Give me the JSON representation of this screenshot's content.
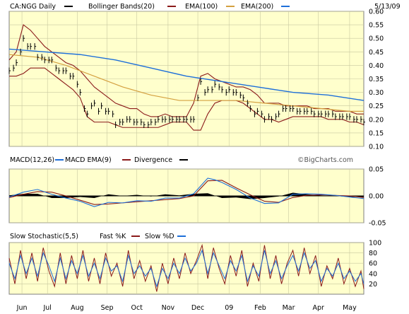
{
  "colors": {
    "page_bg": "#ffffff",
    "panel_bg": "#ffffcc",
    "frame": "#7f7f7f",
    "grid": "#c8c8a0",
    "price": "#000000",
    "bollinger": "#8b1a1a",
    "ema100": "#d4a040",
    "ema200": "#1e6fd9",
    "macd": "#1e6fd9",
    "macd_ema": "#8b1a1a",
    "divergence": "#000000",
    "fast_k": "#8b1a1a",
    "slow_d": "#1e6fd9"
  },
  "chart_data": [
    {
      "type": "line",
      "panel": "price",
      "legend": [
        {
          "label": "CA:NGG Daily",
          "color": "#000000"
        },
        {
          "label": "Bollinger Bands(20)",
          "color": "#8b1a1a"
        },
        {
          "label": "EMA(100)",
          "color": "#d4a040"
        },
        {
          "label": "EMA(200)",
          "color": "#1e6fd9"
        }
      ],
      "date_label": "5/13/09",
      "ylim": [
        0.1,
        0.6
      ],
      "y_ticks": [
        "0.60",
        "0.55",
        "0.50",
        "0.45",
        "0.40",
        "0.35",
        "0.30",
        "0.25",
        "0.20",
        "0.15",
        "0.10"
      ],
      "series": [
        {
          "name": "CA:NGG Daily",
          "x": [
            0,
            3,
            5,
            8,
            10,
            13,
            15,
            18,
            20,
            23,
            25,
            28,
            30,
            33,
            35,
            38,
            40,
            43,
            45,
            48,
            50,
            53,
            55,
            58,
            60,
            63,
            65,
            68,
            70,
            73,
            75,
            78,
            80,
            83,
            85,
            88,
            90,
            93,
            95,
            98,
            100,
            103,
            105,
            108,
            110,
            113,
            115,
            118,
            120,
            123,
            125,
            128,
            130,
            133,
            135,
            138,
            140,
            143,
            145,
            148,
            150,
            153,
            155,
            158,
            160,
            163,
            165,
            168,
            170,
            173,
            175,
            178,
            180,
            183,
            185,
            188,
            190,
            193,
            195,
            198,
            200,
            203,
            205,
            208,
            210,
            213,
            215,
            218,
            220,
            223,
            225,
            228,
            230,
            233,
            235,
            238,
            240,
            243,
            245,
            248,
            250
          ],
          "y": [
            0.38,
            0.39,
            0.41,
            0.45,
            0.5,
            0.47,
            0.47,
            0.47,
            0.43,
            0.43,
            0.42,
            0.42,
            0.42,
            0.39,
            0.38,
            0.38,
            0.38,
            0.36,
            0.36,
            0.33,
            0.3,
            0.24,
            0.22,
            0.25,
            0.26,
            0.23,
            0.25,
            0.23,
            0.23,
            0.22,
            0.18,
            0.19,
            0.19,
            0.2,
            0.2,
            0.19,
            0.19,
            0.19,
            0.18,
            0.18,
            0.19,
            0.19,
            0.2,
            0.2,
            0.2,
            0.2,
            0.2,
            0.2,
            0.2,
            0.2,
            0.2,
            0.2,
            0.2,
            0.28,
            0.34,
            0.3,
            0.31,
            0.31,
            0.33,
            0.32,
            0.31,
            0.3,
            0.31,
            0.3,
            0.3,
            0.29,
            0.28,
            0.26,
            0.24,
            0.22,
            0.23,
            0.22,
            0.2,
            0.21,
            0.2,
            0.21,
            0.22,
            0.24,
            0.24,
            0.24,
            0.24,
            0.23,
            0.23,
            0.23,
            0.23,
            0.23,
            0.22,
            0.22,
            0.22,
            0.22,
            0.22,
            0.22,
            0.21,
            0.21,
            0.21,
            0.21,
            0.21,
            0.2,
            0.2,
            0.2,
            0.19
          ]
        },
        {
          "name": "Bollinger Bands(20)",
          "x": [
            0,
            5,
            10,
            15,
            20,
            25,
            30,
            35,
            40,
            45,
            50,
            55,
            60,
            65,
            70,
            75,
            80,
            85,
            90,
            95,
            100,
            105,
            110,
            115,
            120,
            125,
            130,
            135,
            140,
            145,
            150,
            155,
            160,
            165,
            170,
            175,
            180,
            185,
            190,
            195,
            200,
            205,
            210,
            215,
            220,
            225,
            230,
            235,
            240,
            245,
            250
          ],
          "upper": [
            0.42,
            0.45,
            0.55,
            0.53,
            0.5,
            0.47,
            0.45,
            0.43,
            0.41,
            0.4,
            0.38,
            0.35,
            0.32,
            0.3,
            0.28,
            0.26,
            0.25,
            0.24,
            0.24,
            0.22,
            0.21,
            0.21,
            0.22,
            0.21,
            0.21,
            0.21,
            0.26,
            0.36,
            0.37,
            0.35,
            0.34,
            0.33,
            0.32,
            0.32,
            0.31,
            0.29,
            0.26,
            0.26,
            0.26,
            0.25,
            0.25,
            0.25,
            0.25,
            0.24,
            0.24,
            0.24,
            0.23,
            0.23,
            0.23,
            0.22,
            0.22
          ],
          "lower": [
            0.36,
            0.36,
            0.37,
            0.39,
            0.39,
            0.39,
            0.37,
            0.35,
            0.33,
            0.31,
            0.28,
            0.21,
            0.19,
            0.19,
            0.19,
            0.18,
            0.17,
            0.17,
            0.17,
            0.17,
            0.17,
            0.17,
            0.18,
            0.19,
            0.19,
            0.19,
            0.16,
            0.16,
            0.22,
            0.26,
            0.27,
            0.27,
            0.27,
            0.26,
            0.24,
            0.22,
            0.2,
            0.2,
            0.19,
            0.2,
            0.21,
            0.21,
            0.21,
            0.21,
            0.21,
            0.2,
            0.2,
            0.2,
            0.19,
            0.19,
            0.18
          ]
        },
        {
          "name": "EMA(100)",
          "x": [
            0,
            20,
            40,
            60,
            80,
            100,
            120,
            140,
            160,
            180,
            200,
            220,
            240,
            250
          ],
          "y": [
            0.44,
            0.43,
            0.4,
            0.36,
            0.32,
            0.29,
            0.27,
            0.27,
            0.27,
            0.26,
            0.25,
            0.24,
            0.23,
            0.23
          ]
        },
        {
          "name": "EMA(200)",
          "x": [
            0,
            25,
            50,
            75,
            100,
            125,
            150,
            175,
            200,
            225,
            250
          ],
          "y": [
            0.46,
            0.45,
            0.44,
            0.42,
            0.39,
            0.36,
            0.34,
            0.32,
            0.3,
            0.29,
            0.27
          ]
        }
      ]
    },
    {
      "type": "area",
      "panel": "macd",
      "legend": [
        {
          "label": "MACD(12,26)",
          "color": "#1e6fd9"
        },
        {
          "label": "MACD EMA(9)",
          "color": "#8b1a1a"
        },
        {
          "label": "Divergence",
          "color": "#000000"
        }
      ],
      "watermark": "©BigCharts.com",
      "ylim": [
        -0.05,
        0.05
      ],
      "y_ticks": [
        "0.05",
        "0.00",
        "-0.05"
      ],
      "series": [
        {
          "name": "MACD(12,26)",
          "x": [
            0,
            10,
            20,
            30,
            40,
            50,
            60,
            70,
            80,
            90,
            100,
            110,
            120,
            130,
            140,
            145,
            150,
            160,
            170,
            180,
            190,
            200,
            210,
            220,
            230,
            240,
            250
          ],
          "y": [
            -0.002,
            0.007,
            0.012,
            0.003,
            -0.004,
            -0.01,
            -0.02,
            -0.012,
            -0.013,
            -0.009,
            -0.01,
            -0.004,
            -0.004,
            0.004,
            0.033,
            0.03,
            0.025,
            0.012,
            -0.004,
            -0.014,
            -0.013,
            0.003,
            0.004,
            0.003,
            0.001,
            -0.002,
            -0.005
          ]
        },
        {
          "name": "MACD EMA(9)",
          "x": [
            0,
            10,
            20,
            30,
            40,
            50,
            60,
            70,
            80,
            90,
            100,
            110,
            120,
            130,
            140,
            150,
            160,
            170,
            180,
            190,
            200,
            210,
            220,
            230,
            240,
            250
          ],
          "y": [
            -0.003,
            0.003,
            0.008,
            0.007,
            0.0,
            -0.008,
            -0.016,
            -0.015,
            -0.013,
            -0.011,
            -0.009,
            -0.007,
            -0.005,
            0.0,
            0.028,
            0.029,
            0.015,
            0.002,
            -0.01,
            -0.012,
            -0.003,
            0.001,
            0.002,
            0.001,
            0.0,
            -0.003
          ]
        },
        {
          "name": "Divergence",
          "x": [
            0,
            10,
            20,
            30,
            40,
            50,
            60,
            70,
            80,
            90,
            100,
            110,
            120,
            130,
            140,
            150,
            160,
            170,
            180,
            190,
            200,
            210,
            220,
            230,
            240,
            250
          ],
          "y": [
            0.001,
            0.004,
            0.004,
            -0.004,
            -0.004,
            -0.002,
            -0.004,
            0.003,
            0.0,
            0.002,
            -0.001,
            0.003,
            0.001,
            0.004,
            0.005,
            -0.004,
            -0.003,
            -0.006,
            -0.004,
            -0.001,
            0.006,
            0.003,
            0.001,
            0.0,
            -0.002,
            -0.002
          ]
        }
      ]
    },
    {
      "type": "line",
      "panel": "stochastic",
      "legend": [
        {
          "label": "Slow Stochastic(5,5)",
          "color": "#000000"
        },
        {
          "label": "Fast %K",
          "color": "#8b1a1a"
        },
        {
          "label": "Slow %D",
          "color": "#1e6fd9"
        }
      ],
      "ylim": [
        0,
        100
      ],
      "y_ticks": [
        "100",
        "80",
        "60",
        "40",
        "20"
      ],
      "series": [
        {
          "name": "Fast %K",
          "x": [
            0,
            4,
            8,
            12,
            16,
            20,
            24,
            28,
            32,
            36,
            40,
            44,
            48,
            52,
            56,
            60,
            64,
            68,
            72,
            76,
            80,
            84,
            88,
            92,
            96,
            100,
            104,
            108,
            112,
            116,
            120,
            124,
            128,
            132,
            136,
            140,
            144,
            148,
            152,
            156,
            160,
            164,
            168,
            172,
            176,
            180,
            184,
            188,
            192,
            196,
            200,
            204,
            208,
            212,
            216,
            220,
            224,
            228,
            232,
            236,
            240,
            244,
            248,
            250
          ],
          "y": [
            70,
            20,
            85,
            30,
            80,
            25,
            90,
            45,
            15,
            80,
            20,
            75,
            30,
            85,
            25,
            70,
            20,
            80,
            35,
            60,
            15,
            85,
            30,
            65,
            25,
            55,
            5,
            60,
            20,
            70,
            30,
            80,
            40,
            65,
            95,
            30,
            90,
            50,
            20,
            75,
            35,
            85,
            15,
            60,
            25,
            95,
            30,
            75,
            20,
            60,
            85,
            35,
            90,
            40,
            75,
            15,
            55,
            30,
            70,
            20,
            50,
            15,
            45,
            10
          ]
        },
        {
          "name": "Slow %D",
          "x": [
            0,
            4,
            8,
            12,
            16,
            20,
            24,
            28,
            32,
            36,
            40,
            44,
            48,
            52,
            56,
            60,
            64,
            68,
            72,
            76,
            80,
            84,
            88,
            92,
            96,
            100,
            104,
            108,
            112,
            116,
            120,
            124,
            128,
            132,
            136,
            140,
            144,
            148,
            152,
            156,
            160,
            164,
            168,
            172,
            176,
            180,
            184,
            188,
            192,
            196,
            200,
            204,
            208,
            212,
            216,
            220,
            224,
            228,
            232,
            236,
            240,
            244,
            248,
            250
          ],
          "y": [
            60,
            30,
            75,
            40,
            70,
            35,
            80,
            55,
            25,
            70,
            30,
            65,
            40,
            75,
            35,
            60,
            30,
            70,
            45,
            55,
            25,
            75,
            40,
            55,
            35,
            50,
            15,
            50,
            30,
            60,
            40,
            70,
            45,
            60,
            85,
            40,
            80,
            55,
            30,
            65,
            45,
            75,
            25,
            55,
            35,
            85,
            40,
            65,
            30,
            55,
            75,
            45,
            80,
            50,
            65,
            25,
            50,
            35,
            60,
            30,
            45,
            25,
            40,
            20
          ]
        }
      ]
    }
  ],
  "x_axis": {
    "ticks": [
      {
        "label": "Jun",
        "x": 9
      },
      {
        "label": "Jul",
        "x": 27
      },
      {
        "label": "Aug",
        "x": 48
      },
      {
        "label": "Sep",
        "x": 69
      },
      {
        "label": "Oct",
        "x": 90
      },
      {
        "label": "Nov",
        "x": 112
      },
      {
        "label": "Dec",
        "x": 133
      },
      {
        "label": "09",
        "x": 155
      },
      {
        "label": "Feb",
        "x": 177
      },
      {
        "label": "Mar",
        "x": 197
      },
      {
        "label": "Apr",
        "x": 218
      },
      {
        "label": "May",
        "x": 240
      }
    ],
    "xlim": [
      0,
      250
    ]
  }
}
